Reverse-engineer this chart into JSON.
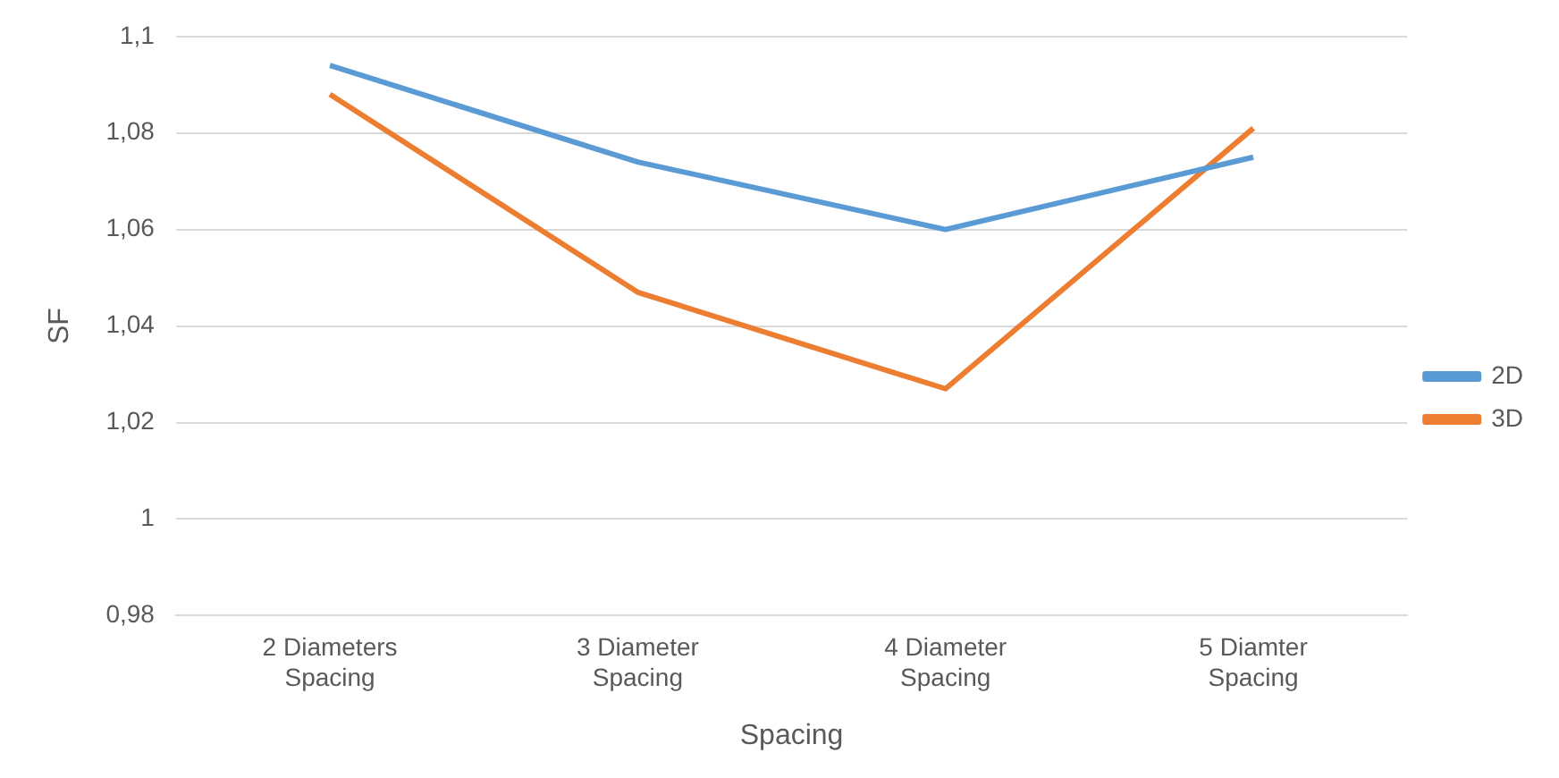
{
  "chart_data": {
    "type": "line",
    "xlabel": "Spacing",
    "ylabel": "SF",
    "categories": [
      "2 Diameters\nSpacing",
      "3 Diameter\nSpacing",
      "4 Diameter\nSpacing",
      "5 Diamter\nSpacing"
    ],
    "series": [
      {
        "name": "2D",
        "color": "#5b9bd5",
        "values": [
          1.094,
          1.074,
          1.06,
          1.075
        ]
      },
      {
        "name": "3D",
        "color": "#ed7d31",
        "values": [
          1.088,
          1.047,
          1.027,
          1.081
        ]
      }
    ],
    "ylim": [
      0.98,
      1.1
    ],
    "yticks": [
      {
        "value": 0.98,
        "label": "0,98"
      },
      1,
      {
        "value": 1.02,
        "label": "1,02"
      },
      {
        "value": 1.04,
        "label": "1,04"
      },
      {
        "value": 1.06,
        "label": "1,06"
      },
      {
        "value": 1.08,
        "label": "1,08"
      },
      {
        "value": 1.1,
        "label": "1,1"
      }
    ],
    "grid": "y",
    "legend": "right",
    "marker": "none",
    "line_style": "solid"
  }
}
